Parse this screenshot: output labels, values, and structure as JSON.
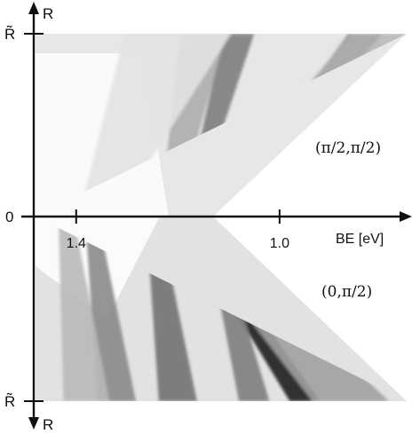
{
  "chart_data": {
    "type": "heatmap",
    "title": "",
    "xlabel": "BE [eV]",
    "ylabel": "R",
    "x_axis": {
      "reversed": true,
      "xlim": [
        1.48,
        0.75
      ],
      "ticks": [
        {
          "value": 1.4,
          "label": "1.4"
        },
        {
          "value": 1.0,
          "label": "1.0"
        }
      ]
    },
    "y_axis": {
      "top_label": "R",
      "bottom_label": "R",
      "ticks": [
        {
          "value": 1,
          "label": "R̃"
        },
        {
          "value": 0,
          "label": "0"
        },
        {
          "value": -1,
          "label": "R̃"
        }
      ]
    },
    "panels": [
      {
        "name": "upper",
        "label": "(π/2,π/2)",
        "ylim": [
          0,
          1
        ]
      },
      {
        "name": "lower",
        "label": "(0,π/2)",
        "ylim": [
          -1,
          0
        ]
      }
    ],
    "colormap": {
      "low": "#ffffff",
      "high": "#141414"
    },
    "bands": [
      {
        "panel": "upper",
        "be_at_zero": 1.13,
        "be_at_edge": 0.83,
        "intensity": 0.95,
        "width": 0.022
      },
      {
        "panel": "upper",
        "be_at_zero": 1.13,
        "be_at_edge": 0.77,
        "intensity": 0.3,
        "width": 0.06
      },
      {
        "panel": "upper",
        "be_at_zero": 1.18,
        "be_at_edge": 1.08,
        "intensity": 0.55,
        "width": 0.02
      },
      {
        "panel": "upper",
        "be_at_zero": 1.22,
        "be_at_edge": 1.15,
        "intensity": 0.35,
        "width": 0.03
      },
      {
        "panel": "upper",
        "be_at_zero": 1.36,
        "be_at_edge": 1.2,
        "intensity": 0.12,
        "width": 0.07
      },
      {
        "panel": "lower",
        "be_at_zero": 1.19,
        "be_at_edge": 0.95,
        "intensity": 0.95,
        "width": 0.02
      },
      {
        "panel": "lower",
        "be_at_zero": 1.19,
        "be_at_edge": 0.86,
        "intensity": 0.4,
        "width": 0.05
      },
      {
        "panel": "lower",
        "be_at_zero": 1.14,
        "be_at_edge": 1.05,
        "intensity": 0.55,
        "width": 0.02
      },
      {
        "panel": "lower",
        "be_at_zero": 1.25,
        "be_at_edge": 1.2,
        "intensity": 0.6,
        "width": 0.025
      },
      {
        "panel": "lower",
        "be_at_zero": 1.37,
        "be_at_edge": 1.32,
        "intensity": 0.5,
        "width": 0.025
      },
      {
        "panel": "lower",
        "be_at_zero": 1.42,
        "be_at_edge": 1.38,
        "intensity": 0.3,
        "width": 0.03
      }
    ]
  }
}
